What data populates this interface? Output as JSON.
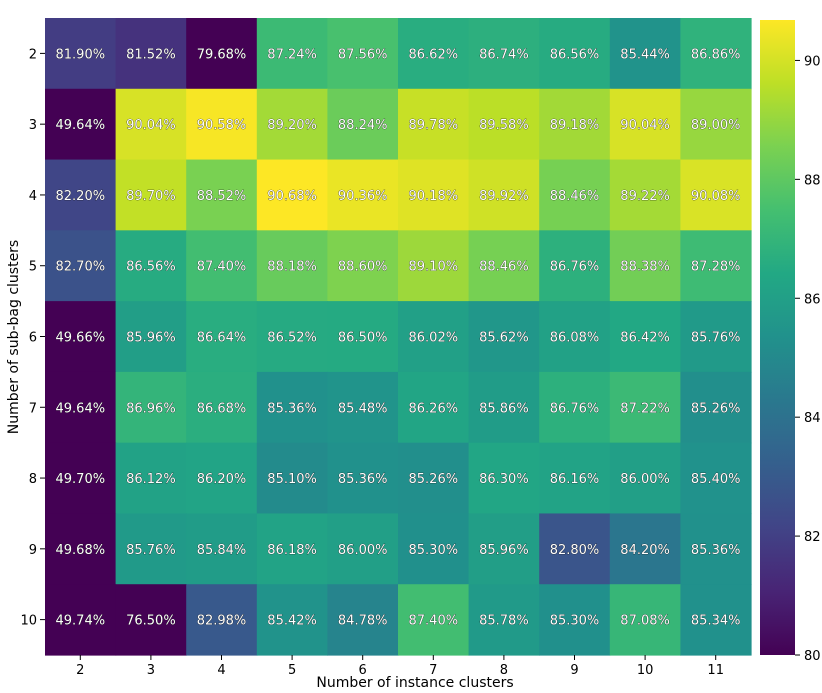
{
  "chart_data": {
    "type": "heatmap",
    "title": "",
    "xlabel": "Number of instance clusters",
    "ylabel": "Number of sub-bag clusters",
    "x": [
      2,
      3,
      4,
      5,
      6,
      7,
      8,
      9,
      10,
      11
    ],
    "y": [
      2,
      3,
      4,
      5,
      6,
      7,
      8,
      9,
      10
    ],
    "values": [
      [
        81.9,
        81.52,
        79.68,
        87.24,
        87.56,
        86.62,
        86.74,
        86.56,
        85.44,
        86.86
      ],
      [
        49.64,
        90.04,
        90.58,
        89.2,
        88.24,
        89.78,
        89.58,
        89.18,
        90.04,
        89.0
      ],
      [
        82.2,
        89.7,
        88.52,
        90.68,
        90.36,
        90.18,
        89.92,
        88.46,
        89.22,
        90.08
      ],
      [
        82.7,
        86.56,
        87.4,
        88.18,
        88.6,
        89.1,
        88.46,
        86.76,
        88.38,
        87.28
      ],
      [
        49.66,
        85.96,
        86.64,
        86.52,
        86.5,
        86.02,
        85.62,
        86.08,
        86.42,
        85.76
      ],
      [
        49.64,
        86.96,
        86.68,
        85.36,
        85.48,
        86.26,
        85.86,
        86.76,
        87.22,
        85.26
      ],
      [
        49.7,
        86.12,
        86.2,
        85.1,
        85.36,
        85.26,
        86.3,
        86.16,
        86.0,
        85.4
      ],
      [
        49.68,
        85.76,
        85.84,
        86.18,
        86.0,
        85.3,
        85.96,
        82.8,
        84.2,
        85.36
      ],
      [
        49.74,
        76.5,
        82.98,
        85.42,
        84.78,
        87.4,
        85.78,
        85.3,
        87.08,
        85.34
      ]
    ],
    "labels": [
      [
        "81.90%",
        "81.52%",
        "79.68%",
        "87.24%",
        "87.56%",
        "86.62%",
        "86.74%",
        "86.56%",
        "85.44%",
        "86.86%"
      ],
      [
        "49.64%",
        "90.04%",
        "90.58%",
        "89.20%",
        "88.24%",
        "89.78%",
        "89.58%",
        "89.18%",
        "90.04%",
        "89.00%"
      ],
      [
        "82.20%",
        "89.70%",
        "88.52%",
        "90.68%",
        "90.36%",
        "90.18%",
        "89.92%",
        "88.46%",
        "89.22%",
        "90.08%"
      ],
      [
        "82.70%",
        "86.56%",
        "87.40%",
        "88.18%",
        "88.60%",
        "89.10%",
        "88.46%",
        "86.76%",
        "88.38%",
        "87.28%"
      ],
      [
        "49.66%",
        "85.96%",
        "86.64%",
        "86.52%",
        "86.50%",
        "86.02%",
        "85.62%",
        "86.08%",
        "86.42%",
        "85.76%"
      ],
      [
        "49.64%",
        "86.96%",
        "86.68%",
        "85.36%",
        "85.48%",
        "86.26%",
        "85.86%",
        "86.76%",
        "87.22%",
        "85.26%"
      ],
      [
        "49.70%",
        "86.12%",
        "86.20%",
        "85.10%",
        "85.36%",
        "85.26%",
        "86.30%",
        "86.16%",
        "86.00%",
        "85.40%"
      ],
      [
        "49.68%",
        "85.76%",
        "85.84%",
        "86.18%",
        "86.00%",
        "85.30%",
        "85.96%",
        "82.80%",
        "84.20%",
        "85.36%"
      ],
      [
        "49.74%",
        "76.50%",
        "82.98%",
        "85.42%",
        "84.78%",
        "87.40%",
        "85.78%",
        "85.30%",
        "87.08%",
        "85.34%"
      ]
    ],
    "colorbar": {
      "vmin": 80,
      "vmax": 90.68,
      "ticks": [
        80,
        82,
        84,
        86,
        88,
        90
      ],
      "colormap": "viridis"
    }
  }
}
